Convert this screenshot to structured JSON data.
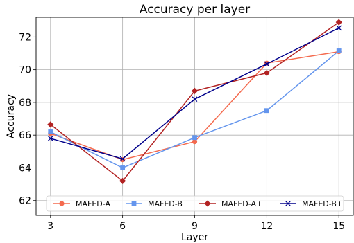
{
  "chart_data": {
    "type": "line",
    "title": "Accuracy per layer",
    "xlabel": "Layer",
    "ylabel": "Accuracy",
    "x": [
      3,
      6,
      9,
      12,
      15
    ],
    "xlim": [
      2.4,
      15.6
    ],
    "ylim": [
      61.1,
      73.2
    ],
    "xticks": [
      "3",
      "6",
      "9",
      "12",
      "15"
    ],
    "yticks": [
      "62",
      "64",
      "66",
      "68",
      "70",
      "72"
    ],
    "grid": true,
    "legend_position": "lower-center",
    "series": [
      {
        "name": "MAFED-A",
        "color": "#f46a4e",
        "marker": "circle",
        "values": [
          66.1,
          64.5,
          65.6,
          70.4,
          71.1
        ]
      },
      {
        "name": "MAFED-B",
        "color": "#6495ed",
        "marker": "square",
        "values": [
          66.2,
          64.0,
          65.85,
          67.5,
          71.15
        ]
      },
      {
        "name": "MAFED-A+",
        "color": "#b22222",
        "marker": "diamond",
        "values": [
          66.65,
          63.2,
          68.7,
          69.8,
          72.9
        ]
      },
      {
        "name": "MAFED-B+",
        "color": "#00008b",
        "marker": "x",
        "values": [
          65.8,
          64.55,
          68.2,
          70.35,
          72.55
        ]
      }
    ]
  }
}
